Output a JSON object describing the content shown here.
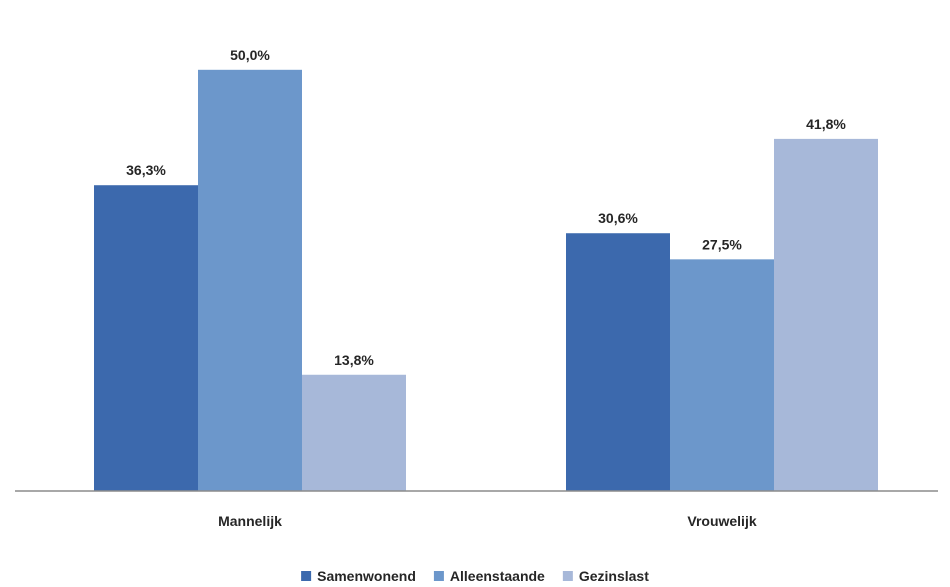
{
  "chart_data": {
    "type": "bar",
    "title": "",
    "xlabel": "",
    "ylabel": "",
    "categories": [
      "Mannelijk",
      "Vrouwelijk"
    ],
    "series": [
      {
        "name": "Samenwonend",
        "values": [
          36.3,
          30.6
        ],
        "labels": [
          "36,3%",
          "30,6%"
        ],
        "color": "#3c69ad"
      },
      {
        "name": "Alleenstaande",
        "values": [
          50.0,
          27.5
        ],
        "labels": [
          "50,0%",
          "27,5%"
        ],
        "color": "#6c97cb"
      },
      {
        "name": "Gezinslast",
        "values": [
          13.8,
          41.8
        ],
        "labels": [
          "13,8%",
          "41,8%"
        ],
        "color": "#a7b8d9"
      }
    ],
    "ylim": [
      0,
      57.1
    ],
    "grid": false,
    "legend_position": "bottom-center",
    "axis_color": "#8c8c8c"
  }
}
